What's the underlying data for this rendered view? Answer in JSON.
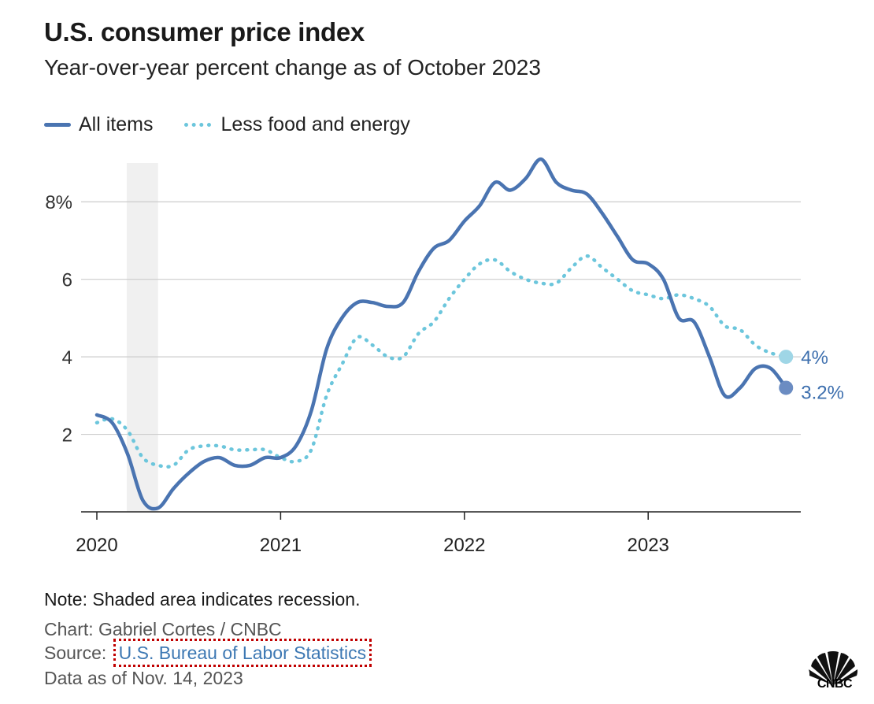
{
  "header": {
    "title": "U.S. consumer price index",
    "subtitle": "Year-over-year percent change as of October 2023"
  },
  "legend": {
    "all_items": "All items",
    "core": "Less food and energy"
  },
  "footer": {
    "note": "Note: Shaded area indicates recession.",
    "credit": "Chart: Gabriel Cortes / CNBC",
    "source_prefix": "Source:",
    "source_link": "U.S. Bureau of Labor Statistics",
    "data_as_of": "Data as of Nov. 14, 2023"
  },
  "logo": {
    "text": "CNBC",
    "icon": "cnbc-peacock-icon"
  },
  "colors": {
    "all_items": "#4a74b1",
    "core": "#6cc6dc",
    "recession": "#f0f0f0",
    "grid": "#cccccc"
  },
  "chart_data": {
    "type": "line",
    "title": "U.S. consumer price index",
    "subtitle": "Year-over-year percent change as of October 2023",
    "xlabel": "",
    "ylabel": "",
    "x_ticks": [
      "2020",
      "2021",
      "2022",
      "2023"
    ],
    "y_ticks": [
      "2",
      "4",
      "6",
      "8%"
    ],
    "y_tick_values": [
      2,
      4,
      6,
      8
    ],
    "ylim": [
      0,
      9
    ],
    "grid": true,
    "legend_position": "top-left",
    "recession": {
      "start": "2020-03",
      "end": "2020-05"
    },
    "x": [
      "2020-01",
      "2020-02",
      "2020-03",
      "2020-04",
      "2020-05",
      "2020-06",
      "2020-07",
      "2020-08",
      "2020-09",
      "2020-10",
      "2020-11",
      "2020-12",
      "2021-01",
      "2021-02",
      "2021-03",
      "2021-04",
      "2021-05",
      "2021-06",
      "2021-07",
      "2021-08",
      "2021-09",
      "2021-10",
      "2021-11",
      "2021-12",
      "2022-01",
      "2022-02",
      "2022-03",
      "2022-04",
      "2022-05",
      "2022-06",
      "2022-07",
      "2022-08",
      "2022-09",
      "2022-10",
      "2022-11",
      "2022-12",
      "2023-01",
      "2023-02",
      "2023-03",
      "2023-04",
      "2023-05",
      "2023-06",
      "2023-07",
      "2023-08",
      "2023-09",
      "2023-10"
    ],
    "series": [
      {
        "name": "All items",
        "values": [
          2.5,
          2.3,
          1.5,
          0.3,
          0.1,
          0.6,
          1.0,
          1.3,
          1.4,
          1.2,
          1.2,
          1.4,
          1.4,
          1.7,
          2.6,
          4.2,
          5.0,
          5.4,
          5.4,
          5.3,
          5.4,
          6.2,
          6.8,
          7.0,
          7.5,
          7.9,
          8.5,
          8.3,
          8.6,
          9.1,
          8.5,
          8.3,
          8.2,
          7.7,
          7.1,
          6.5,
          6.4,
          6.0,
          5.0,
          4.9,
          4.0,
          3.0,
          3.2,
          3.7,
          3.7,
          3.2
        ],
        "end_label": "3.2%"
      },
      {
        "name": "Less food and energy",
        "values": [
          2.3,
          2.4,
          2.1,
          1.4,
          1.2,
          1.2,
          1.6,
          1.7,
          1.7,
          1.6,
          1.6,
          1.6,
          1.4,
          1.3,
          1.6,
          3.0,
          3.8,
          4.5,
          4.3,
          4.0,
          4.0,
          4.6,
          4.9,
          5.5,
          6.0,
          6.4,
          6.5,
          6.2,
          6.0,
          5.9,
          5.9,
          6.3,
          6.6,
          6.3,
          6.0,
          5.7,
          5.6,
          5.5,
          5.6,
          5.5,
          5.3,
          4.8,
          4.7,
          4.3,
          4.1,
          4.0
        ],
        "end_label": "4%"
      }
    ]
  }
}
